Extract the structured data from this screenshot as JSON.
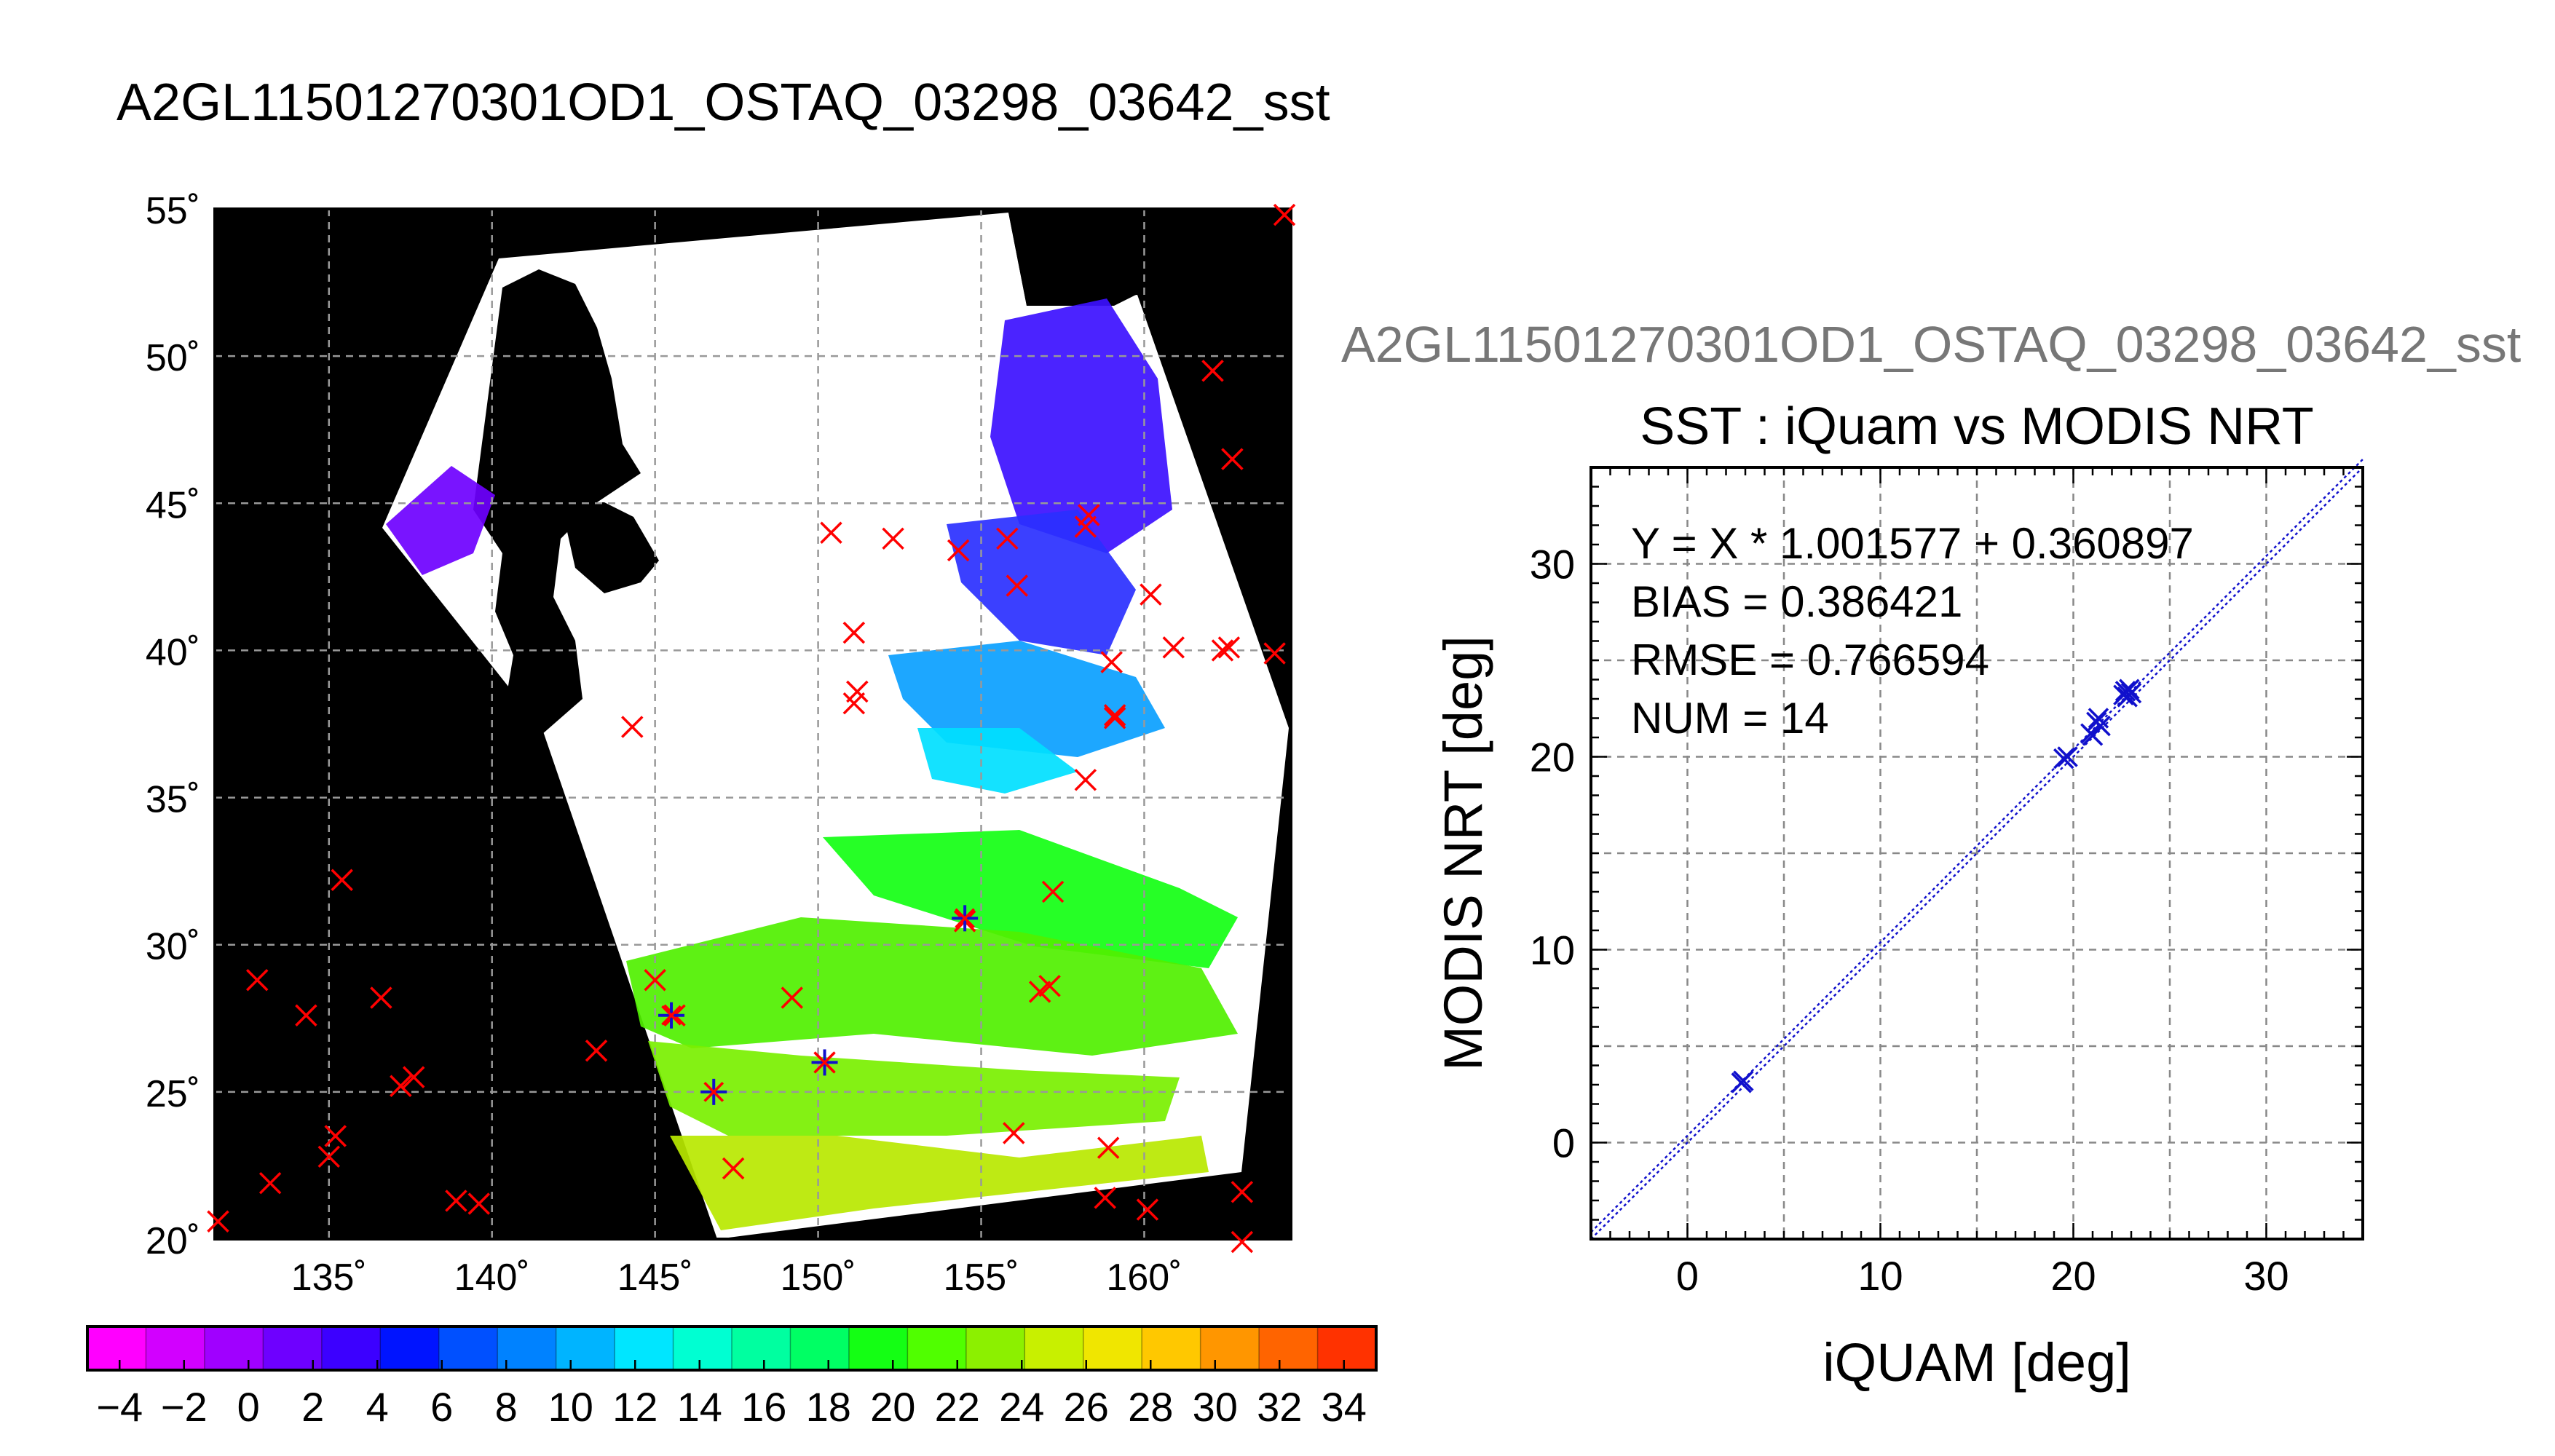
{
  "main_title": "A2GL11501270301OD1_OSTAQ_03298_03642_sst",
  "chart_data": [
    {
      "type": "map",
      "xlabel": "",
      "ylabel": "",
      "xlim": [
        131.5,
        164.5
      ],
      "ylim": [
        20,
        55
      ],
      "lon_ticks": [
        135,
        140,
        145,
        150,
        155,
        160
      ],
      "lat_ticks": [
        20,
        25,
        30,
        35,
        40,
        45,
        50,
        55
      ],
      "lon_tick_labels": [
        "135˚",
        "140˚",
        "145˚",
        "150˚",
        "155˚",
        "160˚"
      ],
      "lat_tick_labels": [
        "20˚",
        "25˚",
        "30˚",
        "35˚",
        "40˚",
        "45˚",
        "50˚",
        "55˚"
      ],
      "grid": true,
      "background_color": "#000000",
      "swath_color": "#ffffff",
      "iquam_points_red_x": [
        [
          131.6,
          20.6
        ],
        [
          133.2,
          21.9
        ],
        [
          132.8,
          28.8
        ],
        [
          134.3,
          27.6
        ],
        [
          135.4,
          32.2
        ],
        [
          135.0,
          22.8
        ],
        [
          135.2,
          23.5
        ],
        [
          136.6,
          28.2
        ],
        [
          137.2,
          25.2
        ],
        [
          137.6,
          25.5
        ],
        [
          138.9,
          21.3
        ],
        [
          139.6,
          21.2
        ],
        [
          143.2,
          26.4
        ],
        [
          144.3,
          37.4
        ],
        [
          145.0,
          28.8
        ],
        [
          145.6,
          27.6
        ],
        [
          147.4,
          22.4
        ],
        [
          149.2,
          28.2
        ],
        [
          150.2,
          26.0
        ],
        [
          150.4,
          44.0
        ],
        [
          151.1,
          40.6
        ],
        [
          151.1,
          38.2
        ],
        [
          151.2,
          38.6
        ],
        [
          152.3,
          43.8
        ],
        [
          154.3,
          43.4
        ],
        [
          154.5,
          30.8
        ],
        [
          155.8,
          43.8
        ],
        [
          156.0,
          23.6
        ],
        [
          156.1,
          42.2
        ],
        [
          156.8,
          28.4
        ],
        [
          157.1,
          28.6
        ],
        [
          157.2,
          31.8
        ],
        [
          158.2,
          35.6
        ],
        [
          158.2,
          44.2
        ],
        [
          158.3,
          44.6
        ],
        [
          158.9,
          23.1
        ],
        [
          158.8,
          21.4
        ],
        [
          159.0,
          39.6
        ],
        [
          159.1,
          37.8
        ],
        [
          159.1,
          37.7
        ],
        [
          160.1,
          21.0
        ],
        [
          160.2,
          41.9
        ],
        [
          160.9,
          40.1
        ],
        [
          162.1,
          49.5
        ],
        [
          162.4,
          40.0
        ],
        [
          162.6,
          40.1
        ],
        [
          162.7,
          46.5
        ],
        [
          163.0,
          21.6
        ],
        [
          163.0,
          19.9
        ],
        [
          164.0,
          39.9
        ],
        [
          164.3,
          54.8
        ]
      ],
      "matchup_points_blue_star": [
        [
          145.5,
          27.6
        ],
        [
          146.8,
          25.0
        ],
        [
          150.2,
          26.0
        ],
        [
          154.5,
          30.9
        ]
      ]
    },
    {
      "type": "scatter",
      "subtitle": "A2GL11501270301OD1_OSTAQ_03298_03642_sst",
      "title": "SST : iQuam vs MODIS NRT",
      "xlabel": "iQUAM [deg]",
      "ylabel": "MODIS NRT [deg]",
      "xlim": [
        -5,
        35
      ],
      "ylim": [
        -5,
        35
      ],
      "xticks": [
        0,
        10,
        20,
        30
      ],
      "yticks": [
        0,
        10,
        20,
        30
      ],
      "grid": true,
      "annotations": [
        "Y = X * 1.001577 + 0.360897",
        "BIAS = 0.386421",
        "RMSE = 0.766594",
        "NUM = 14"
      ],
      "fit": {
        "slope": 1.001577,
        "intercept": 0.360897
      },
      "x": [
        2.8,
        2.9,
        19.5,
        19.7,
        20.9,
        21.0,
        21.2,
        21.3,
        21.4,
        22.6,
        22.7,
        22.8,
        22.9,
        23.0
      ],
      "y": [
        3.1,
        3.2,
        19.9,
        20.0,
        21.2,
        21.1,
        21.8,
        22.0,
        21.6,
        23.2,
        23.4,
        23.1,
        23.5,
        23.3
      ],
      "marker_color": "#1010cc"
    },
    {
      "type": "colorbar",
      "tick_labels": [
        "−4",
        "−2",
        "0",
        "2",
        "4",
        "6",
        "8",
        "10",
        "12",
        "14",
        "16",
        "18",
        "20",
        "22",
        "24",
        "26",
        "28",
        "30",
        "32",
        "34"
      ],
      "range": [
        -5,
        35
      ],
      "colors": [
        "#ff00ff",
        "#d200ff",
        "#a000ff",
        "#6e00ff",
        "#3c00ff",
        "#0014ff",
        "#0050ff",
        "#0082ff",
        "#00b4ff",
        "#00e6ff",
        "#00ffd2",
        "#00ffa0",
        "#00ff64",
        "#14ff14",
        "#50ff00",
        "#8cf000",
        "#c8f000",
        "#f0e600",
        "#ffc800",
        "#ff9600",
        "#ff6400",
        "#ff3200"
      ]
    }
  ]
}
